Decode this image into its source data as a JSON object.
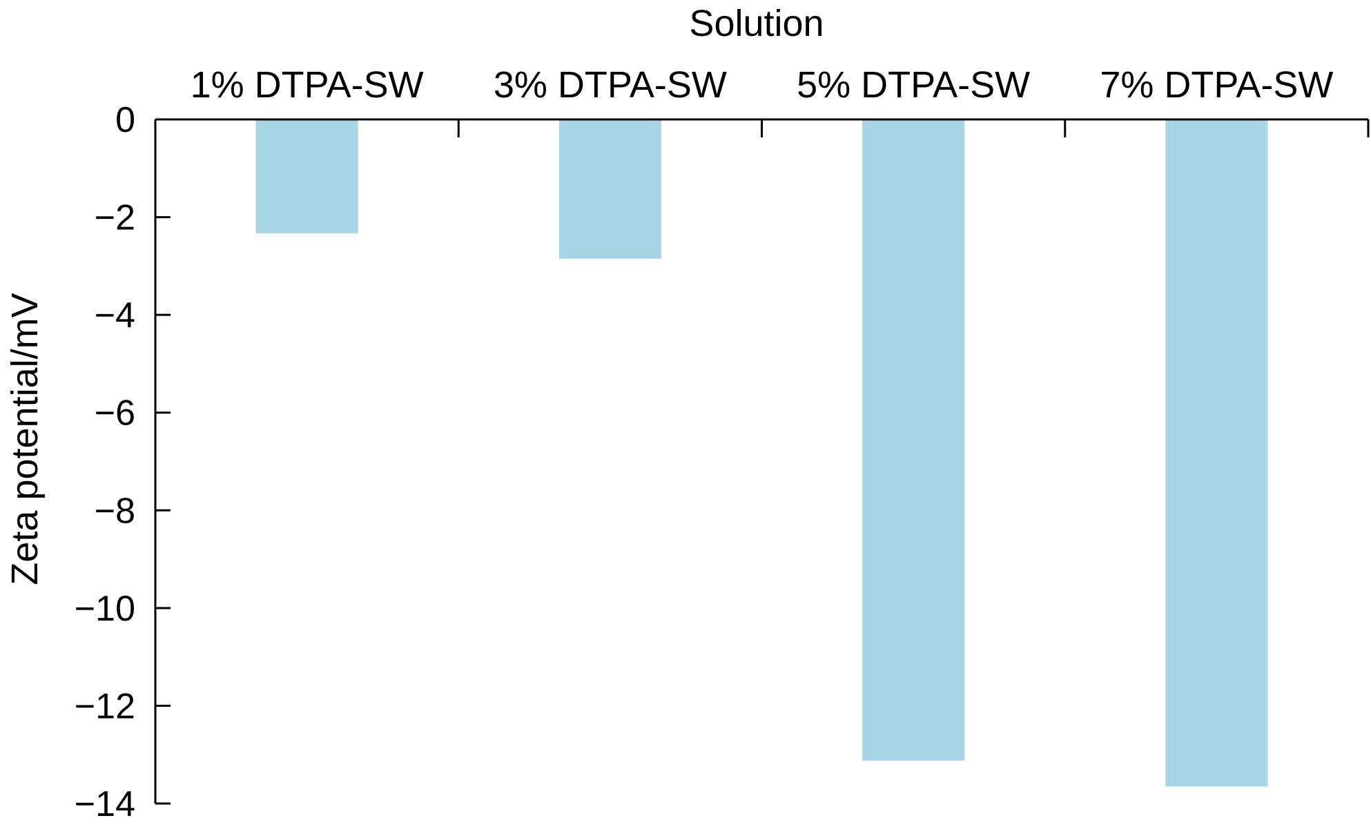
{
  "chart_data": {
    "type": "bar",
    "xlabel": "Solution",
    "ylabel": "Zeta potential/mV",
    "categories": [
      "1% DTPA-SW",
      "3% DTPA-SW",
      "5% DTPA-SW",
      "7% DTPA-SW"
    ],
    "values": [
      -2.33,
      -2.85,
      -13.12,
      -13.65
    ],
    "ylim": [
      -14,
      0
    ],
    "yticks": [
      0,
      -2,
      -4,
      -6,
      -8,
      -10,
      -12,
      -14
    ],
    "ytick_labels": [
      "0",
      "−2",
      "−4",
      "−6",
      "−8",
      "−10",
      "−12",
      "−14"
    ],
    "x_axis_position": "top",
    "grid": false,
    "colors": {
      "bar": "#a8d5e5",
      "axis": "#000000"
    }
  }
}
